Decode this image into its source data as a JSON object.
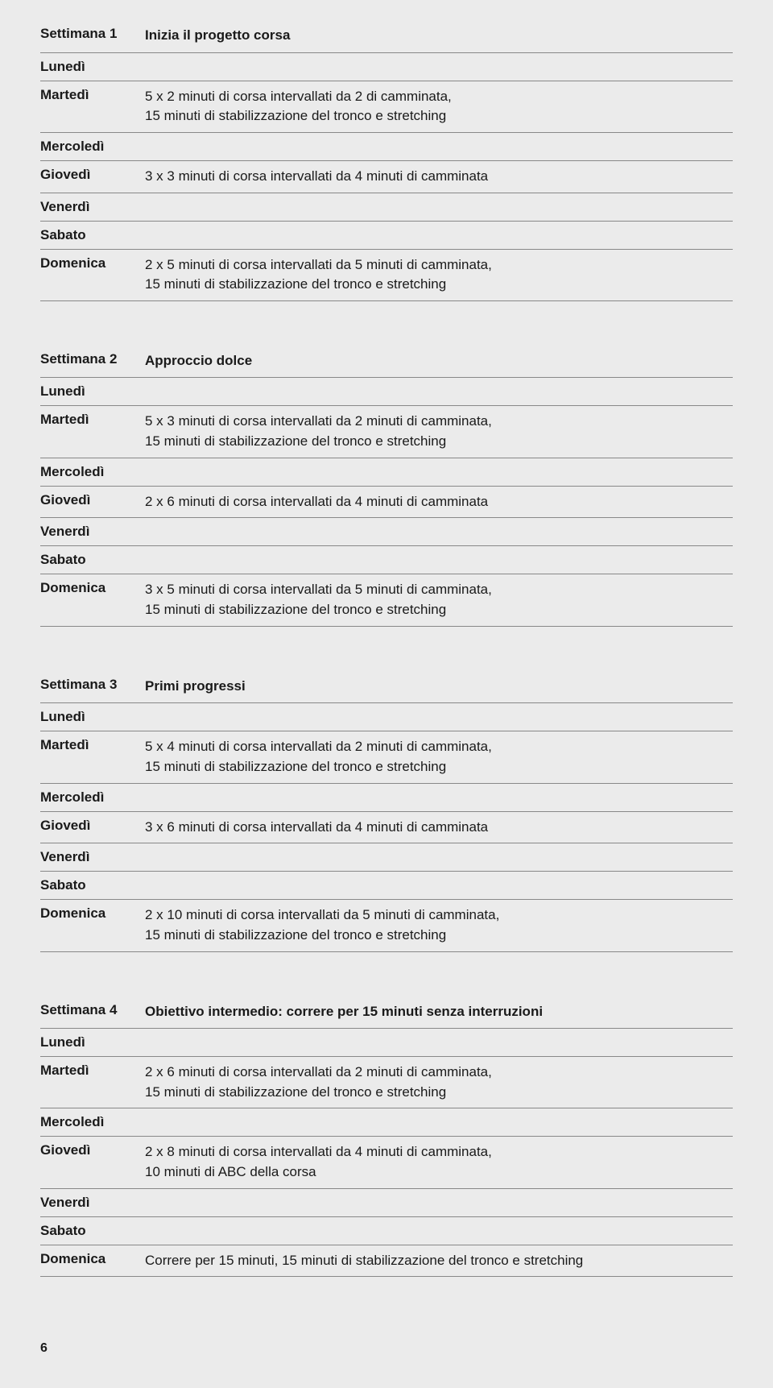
{
  "page_number": "6",
  "weeks": [
    {
      "week_label": "Settimana 1",
      "week_title": "Inizia il progetto corsa",
      "days": [
        {
          "day": "Lunedì",
          "desc": ""
        },
        {
          "day": "Martedì",
          "desc": "5 x 2 minuti di corsa intervallati da 2 di camminata,\n15 minuti di stabilizzazione del tronco e stretching"
        },
        {
          "day": "Mercoledì",
          "desc": ""
        },
        {
          "day": "Giovedì",
          "desc": "3 x 3 minuti di corsa intervallati da 4 minuti di camminata"
        },
        {
          "day": "Venerdì",
          "desc": ""
        },
        {
          "day": "Sabato",
          "desc": ""
        },
        {
          "day": "Domenica",
          "desc": "2 x 5 minuti di corsa intervallati da 5 minuti di camminata,\n15 minuti di stabilizzazione del tronco e stretching"
        }
      ]
    },
    {
      "week_label": "Settimana 2",
      "week_title": "Approccio dolce",
      "days": [
        {
          "day": "Lunedì",
          "desc": ""
        },
        {
          "day": "Martedì",
          "desc": "5 x 3 minuti di corsa intervallati da 2 minuti di camminata,\n15 minuti di stabilizzazione del tronco e stretching"
        },
        {
          "day": "Mercoledì",
          "desc": ""
        },
        {
          "day": "Giovedì",
          "desc": "2 x 6 minuti di corsa intervallati da 4 minuti di camminata"
        },
        {
          "day": "Venerdì",
          "desc": ""
        },
        {
          "day": "Sabato",
          "desc": ""
        },
        {
          "day": "Domenica",
          "desc": "3 x 5 minuti di corsa intervallati da 5 minuti di camminata,\n15 minuti di stabilizzazione del tronco e stretching"
        }
      ]
    },
    {
      "week_label": "Settimana 3",
      "week_title": "Primi progressi",
      "days": [
        {
          "day": "Lunedì",
          "desc": ""
        },
        {
          "day": "Martedì",
          "desc": "5 x 4 minuti di corsa intervallati da 2 minuti di camminata,\n15 minuti di stabilizzazione del tronco e stretching"
        },
        {
          "day": "Mercoledì",
          "desc": ""
        },
        {
          "day": "Giovedì",
          "desc": "3 x 6 minuti di corsa intervallati da 4 minuti di camminata"
        },
        {
          "day": "Venerdì",
          "desc": ""
        },
        {
          "day": "Sabato",
          "desc": ""
        },
        {
          "day": "Domenica",
          "desc": "2 x 10 minuti di corsa intervallati da 5 minuti di camminata,\n15 minuti di stabilizzazione del tronco e stretching"
        }
      ]
    },
    {
      "week_label": "Settimana 4",
      "week_title": "Obiettivo intermedio: correre per 15 minuti senza interruzioni",
      "days": [
        {
          "day": "Lunedì",
          "desc": ""
        },
        {
          "day": "Martedì",
          "desc": "2 x 6 minuti di corsa intervallati da 2 minuti di camminata,\n15 minuti di stabilizzazione del tronco e stretching"
        },
        {
          "day": "Mercoledì",
          "desc": ""
        },
        {
          "day": "Giovedì",
          "desc": "2 x 8 minuti di corsa intervallati da 4 minuti di camminata,\n10 minuti di ABC della corsa"
        },
        {
          "day": "Venerdì",
          "desc": ""
        },
        {
          "day": "Sabato",
          "desc": ""
        },
        {
          "day": "Domenica",
          "desc": "Correre per 15 minuti, 15 minuti di stabilizzazione del tronco e stretching"
        }
      ]
    }
  ]
}
